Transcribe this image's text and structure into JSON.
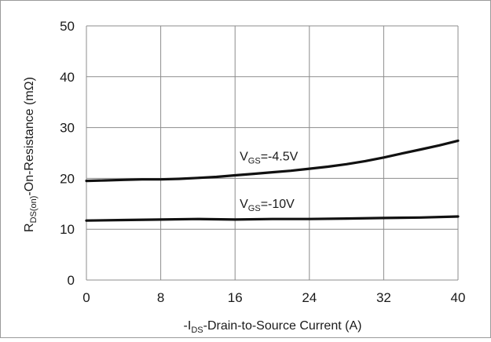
{
  "chart_data": {
    "type": "line",
    "title": "",
    "xlabel": {
      "prefix": "-I",
      "subscript": "DS",
      "suffix": "-Drain-to-Source Current (A)"
    },
    "ylabel": {
      "prefix": "R",
      "subscript": "DS(on)",
      "suffix": "-On-Resistance (mΩ)"
    },
    "xlim": [
      0,
      40
    ],
    "ylim": [
      0,
      50
    ],
    "x_ticks": [
      0,
      8,
      16,
      24,
      32,
      40
    ],
    "y_ticks": [
      0,
      10,
      20,
      30,
      40,
      50
    ],
    "grid": true,
    "legend": "none",
    "series": [
      {
        "label_prefix": "V",
        "label_subscript": "GS",
        "label_suffix": "=-4.5V",
        "color": "#111111",
        "x": [
          0,
          2,
          4,
          6,
          8,
          10,
          12,
          14,
          16,
          18,
          20,
          22,
          24,
          26,
          28,
          30,
          32,
          34,
          36,
          38,
          40
        ],
        "y": [
          19.5,
          19.6,
          19.7,
          19.8,
          19.8,
          19.9,
          20.1,
          20.3,
          20.6,
          20.9,
          21.2,
          21.5,
          21.9,
          22.3,
          22.8,
          23.4,
          24.1,
          24.9,
          25.7,
          26.5,
          27.4
        ]
      },
      {
        "label_prefix": "V",
        "label_subscript": "GS",
        "label_suffix": "=-10V",
        "color": "#111111",
        "x": [
          0,
          4,
          8,
          12,
          16,
          20,
          24,
          28,
          32,
          36,
          40
        ],
        "y": [
          11.7,
          11.8,
          11.9,
          12.0,
          11.9,
          12.0,
          12.0,
          12.1,
          12.2,
          12.3,
          12.5
        ]
      }
    ]
  }
}
